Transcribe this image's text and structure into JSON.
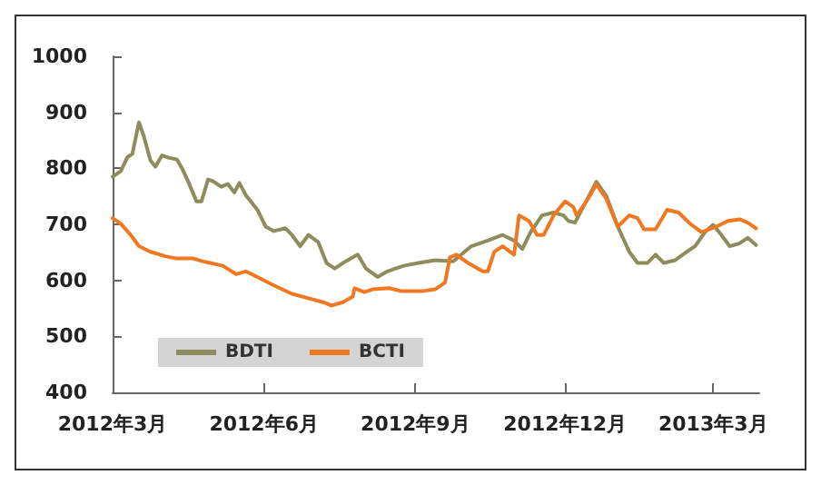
{
  "chart_data": {
    "type": "line",
    "xlim": [
      "2012-03-01",
      "2013-03-29"
    ],
    "xticks": [
      {
        "value": "2012-03-01",
        "label": "2012年3月"
      },
      {
        "value": "2012-06-01",
        "label": "2012年6月"
      },
      {
        "value": "2012-09-01",
        "label": "2012年9月"
      },
      {
        "value": "2012-12-01",
        "label": "2012年12月"
      },
      {
        "value": "2013-03-01",
        "label": "2013年3月"
      }
    ],
    "ylim": [
      400,
      1000
    ],
    "yticks": [
      400,
      500,
      600,
      700,
      800,
      900,
      1000
    ],
    "grid": false,
    "legend": "bottom left",
    "marker": "none",
    "line_style": "solid",
    "series": [
      {
        "name": "BDTI",
        "color": "#8c8c5c",
        "x": [
          "2012-03-01",
          "2012-03-06",
          "2012-03-10",
          "2012-03-13",
          "2012-03-17",
          "2012-03-20",
          "2012-03-24",
          "2012-03-27",
          "2012-03-31",
          "2012-04-04",
          "2012-04-09",
          "2012-04-12",
          "2012-04-16",
          "2012-04-21",
          "2012-04-24",
          "2012-04-28",
          "2012-05-01",
          "2012-05-06",
          "2012-05-10",
          "2012-05-14",
          "2012-05-17",
          "2012-05-21",
          "2012-05-28",
          "2012-06-02",
          "2012-06-07",
          "2012-06-14",
          "2012-06-18",
          "2012-06-23",
          "2012-06-28",
          "2012-07-04",
          "2012-07-09",
          "2012-07-14",
          "2012-07-19",
          "2012-07-28",
          "2012-08-02",
          "2012-08-09",
          "2012-08-15",
          "2012-08-20",
          "2012-08-25",
          "2012-09-03",
          "2012-09-13",
          "2012-09-24",
          "2012-10-05",
          "2012-10-15",
          "2012-10-24",
          "2012-10-31",
          "2012-11-05",
          "2012-11-10",
          "2012-11-17",
          "2012-11-24",
          "2012-11-30",
          "2012-12-03",
          "2012-12-07",
          "2012-12-12",
          "2012-12-20",
          "2012-12-26",
          "2013-01-02",
          "2013-01-09",
          "2013-01-14",
          "2013-01-20",
          "2013-01-25",
          "2013-01-30",
          "2013-02-06",
          "2013-02-13",
          "2013-02-18",
          "2013-02-24",
          "2013-03-01",
          "2013-03-06",
          "2013-03-11",
          "2013-03-17",
          "2013-03-22",
          "2013-03-27"
        ],
        "values": [
          785,
          795,
          820,
          826,
          882,
          857,
          814,
          803,
          823,
          819,
          816,
          801,
          776,
          741,
          741,
          780,
          777,
          767,
          772,
          757,
          774,
          752,
          726,
          696,
          688,
          693,
          681,
          661,
          681,
          668,
          631,
          621,
          631,
          646,
          621,
          606,
          616,
          621,
          626,
          631,
          636,
          634,
          661,
          671,
          681,
          671,
          656,
          686,
          716,
          721,
          716,
          706,
          703,
          731,
          776,
          751,
          696,
          651,
          631,
          631,
          646,
          631,
          636,
          651,
          661,
          686,
          699,
          681,
          661,
          666,
          676,
          663
        ]
      },
      {
        "name": "BCTI",
        "color": "#f07820",
        "x": [
          "2012-03-01",
          "2012-03-06",
          "2012-03-12",
          "2012-03-17",
          "2012-03-24",
          "2012-04-02",
          "2012-04-09",
          "2012-04-19",
          "2012-04-26",
          "2012-05-07",
          "2012-05-15",
          "2012-05-21",
          "2012-05-28",
          "2012-06-07",
          "2012-06-18",
          "2012-06-28",
          "2012-07-07",
          "2012-07-12",
          "2012-07-19",
          "2012-07-25",
          "2012-07-26",
          "2012-08-01",
          "2012-08-06",
          "2012-08-16",
          "2012-08-23",
          "2012-09-03",
          "2012-09-06",
          "2012-09-13",
          "2012-09-19",
          "2012-09-22",
          "2012-09-26",
          "2012-10-03",
          "2012-10-12",
          "2012-10-15",
          "2012-10-19",
          "2012-10-24",
          "2012-10-31",
          "2012-11-03",
          "2012-11-09",
          "2012-11-14",
          "2012-11-18",
          "2012-11-24",
          "2012-12-01",
          "2012-12-06",
          "2012-12-08",
          "2012-12-14",
          "2012-12-20",
          "2012-12-26",
          "2013-01-02",
          "2013-01-09",
          "2013-01-14",
          "2013-01-18",
          "2013-01-25",
          "2013-02-01",
          "2013-02-08",
          "2013-02-15",
          "2013-02-22",
          "2013-03-03",
          "2013-03-10",
          "2013-03-17",
          "2013-03-22",
          "2013-03-27"
        ],
        "values": [
          711,
          701,
          681,
          661,
          651,
          643,
          639,
          639,
          633,
          626,
          611,
          616,
          606,
          591,
          576,
          568,
          561,
          555,
          561,
          571,
          586,
          579,
          584,
          586,
          581,
          581,
          581,
          584,
          596,
          641,
          646,
          631,
          616,
          616,
          651,
          661,
          646,
          716,
          706,
          681,
          681,
          716,
          741,
          731,
          716,
          741,
          771,
          746,
          696,
          716,
          711,
          691,
          691,
          726,
          721,
          701,
          686,
          696,
          706,
          709,
          703,
          693
        ]
      }
    ]
  }
}
